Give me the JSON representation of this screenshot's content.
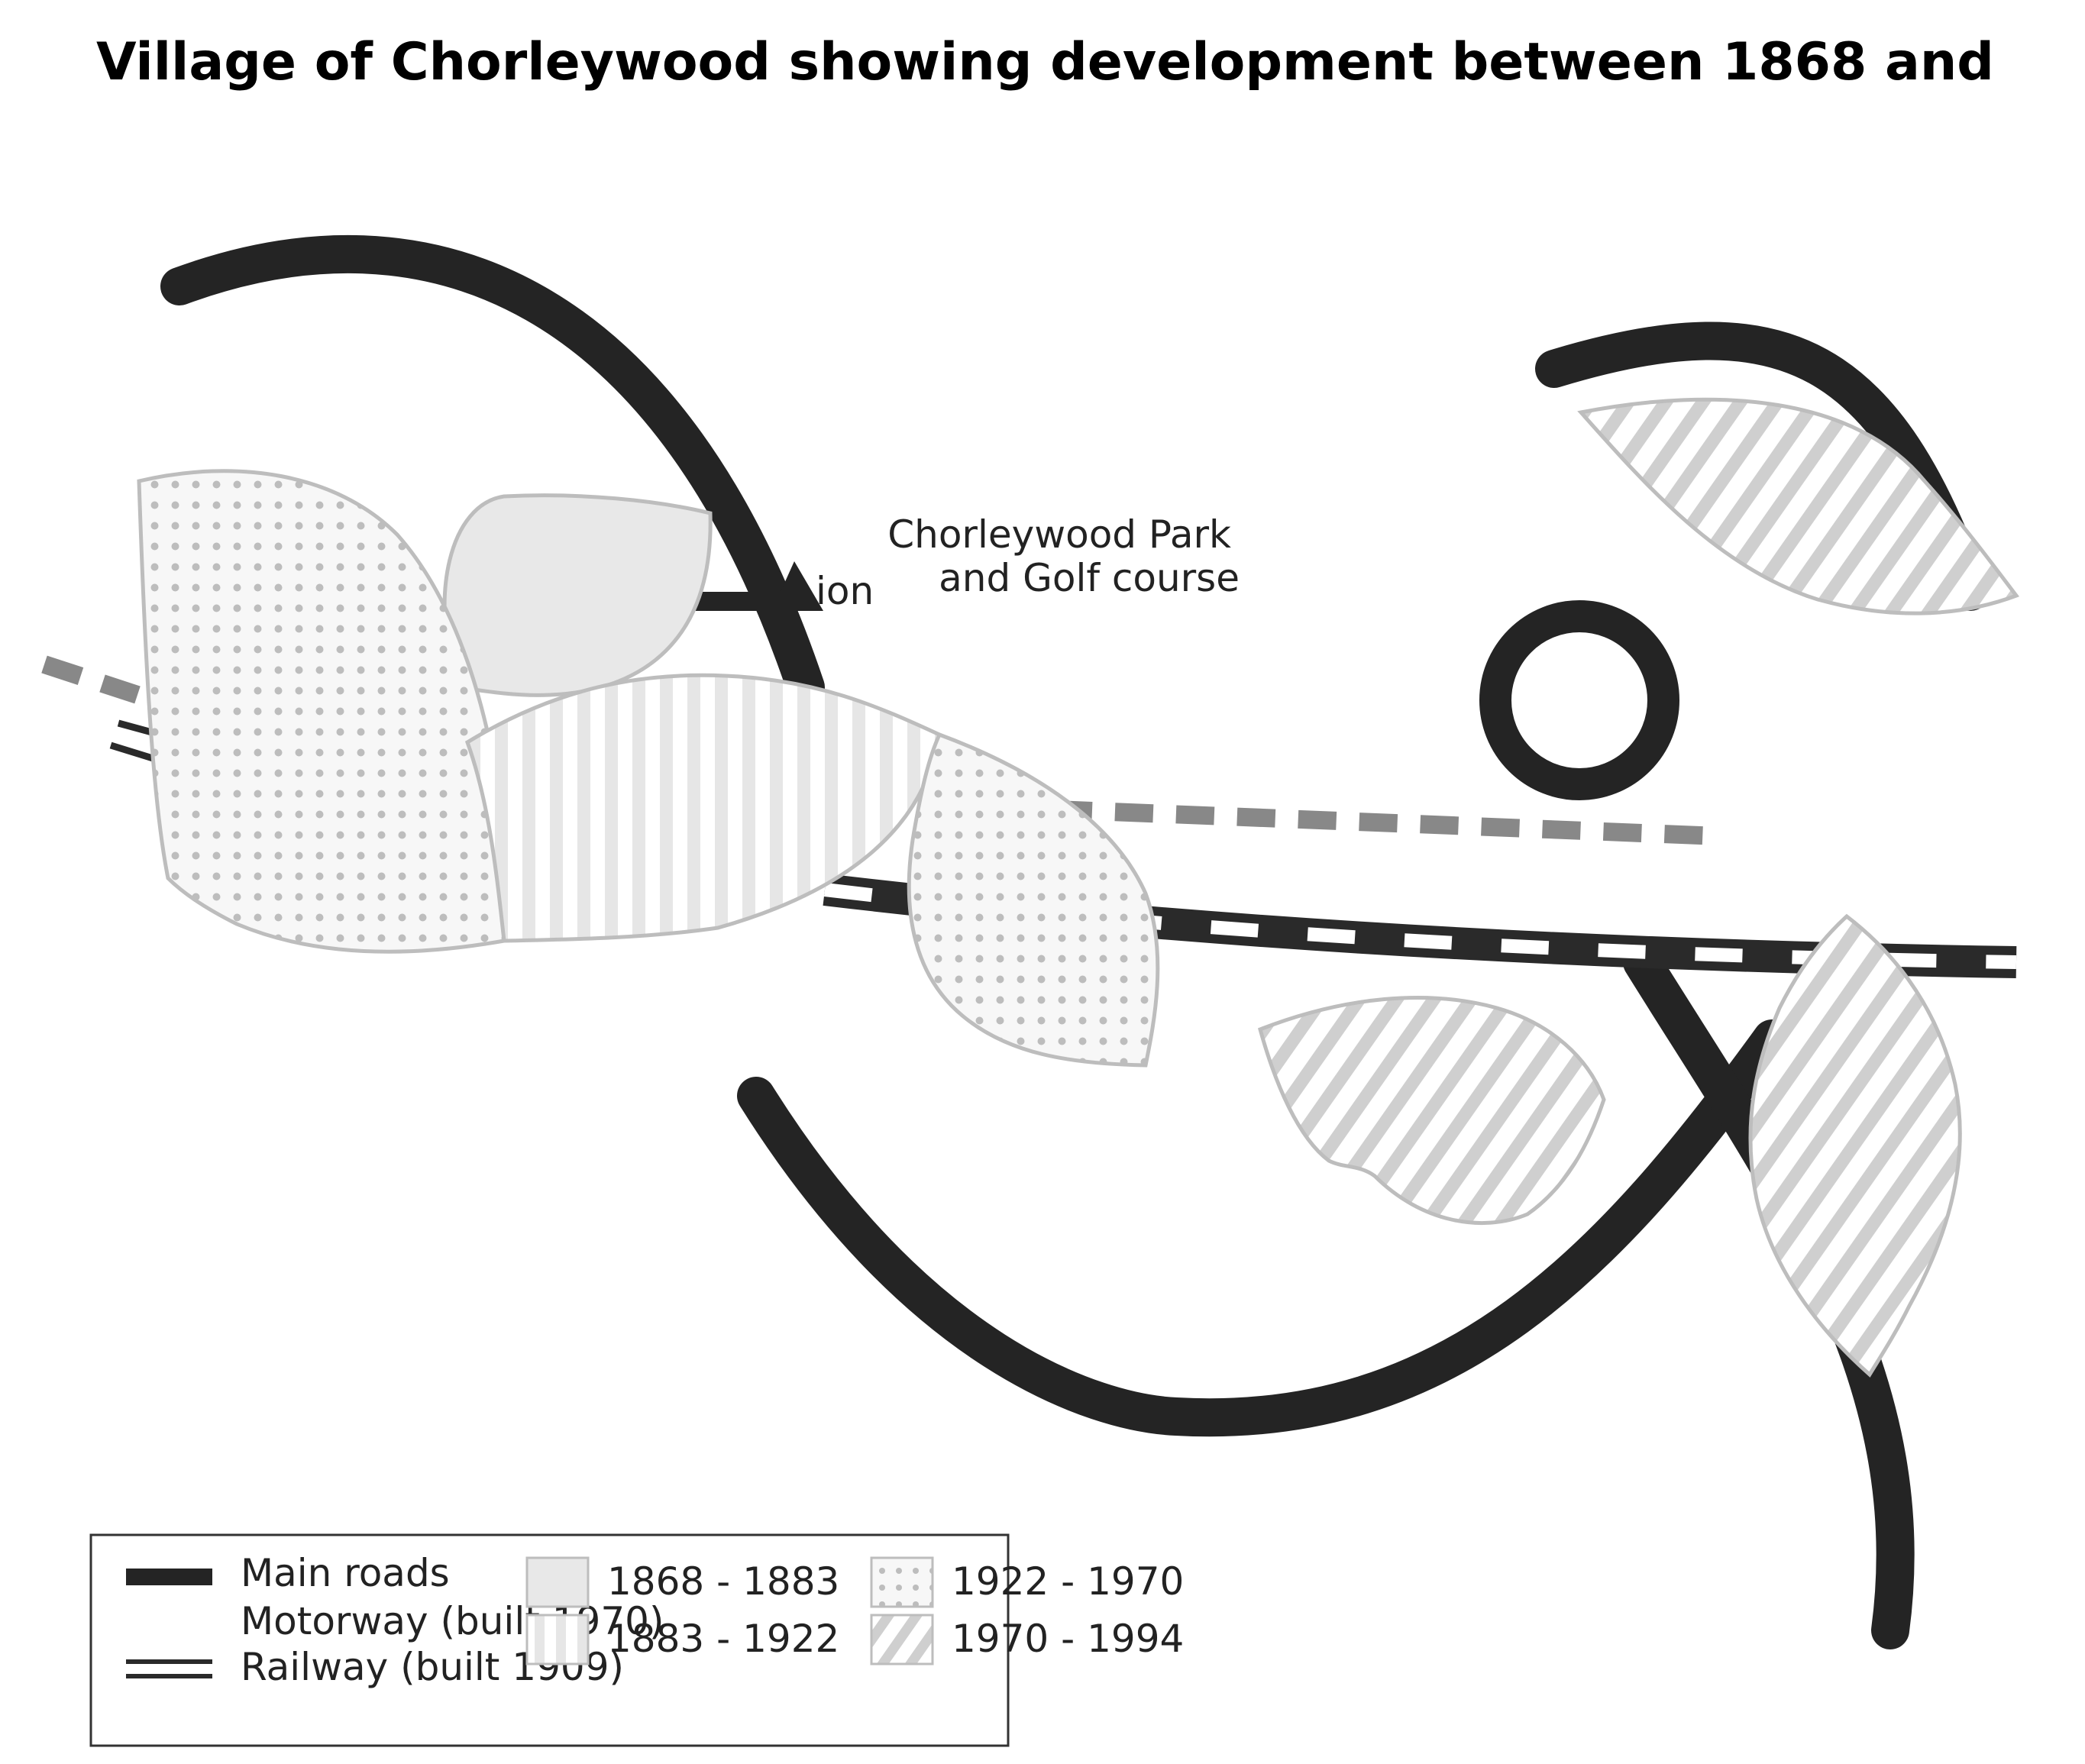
{
  "title": "Village of Chorleywood showing development between 1868 and",
  "labels": {
    "park_line1": "Chorleywood Park",
    "park_line2": "and Golf course",
    "station_fragment": "ion"
  },
  "legend": {
    "lines": [
      {
        "label": "Main roads"
      },
      {
        "label": "Motorway (built 1970)"
      },
      {
        "label": "Railway (built 1909)"
      }
    ],
    "periods": [
      {
        "label": "1868 - 1883",
        "pattern": "solid-light-grey"
      },
      {
        "label": "1883 - 1922",
        "pattern": "vertical-stripes"
      },
      {
        "label": "1922 - 1970",
        "pattern": "dots"
      },
      {
        "label": "1970 - 1994",
        "pattern": "diagonal-hatch"
      }
    ]
  },
  "colors": {
    "road": "#242424",
    "motorway": "#888888",
    "railway": "#2a2a2a",
    "area_fill": "#e8e8e8",
    "area_pattern": "#c8c8c8",
    "area_outline": "#bdbdbd"
  }
}
